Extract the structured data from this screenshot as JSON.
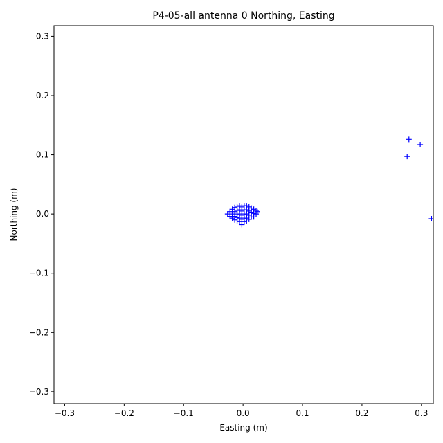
{
  "chart_data": {
    "type": "scatter",
    "title": "P4-05-all antenna 0 Northing, Easting",
    "x_label": "Easting (m)",
    "y_label": "Northing (m)",
    "color": "#0000ff",
    "marker": "+",
    "xlim": [
      -0.318,
      0.32
    ],
    "ylim": [
      -0.32,
      0.318
    ],
    "xticks": [
      {
        "value": -0.3,
        "label": "−0.3"
      },
      {
        "value": -0.2,
        "label": "−0.2"
      },
      {
        "value": -0.1,
        "label": "−0.1"
      },
      {
        "value": 0,
        "label": "0.0"
      },
      0.1,
      0.2,
      0.3
    ],
    "yticks": [
      {
        "value": -0.3,
        "label": "−0.3"
      },
      {
        "value": -0.2,
        "label": "−0.2"
      },
      {
        "value": -0.1,
        "label": "−0.1"
      },
      {
        "value": 0,
        "label": "0.0"
      },
      0.1,
      0.2,
      0.3
    ],
    "x": [
      -0.026,
      -0.022,
      -0.022,
      -0.018,
      -0.018,
      -0.018,
      -0.014,
      -0.014,
      -0.014,
      -0.014,
      -0.01,
      -0.01,
      -0.01,
      -0.01,
      -0.01,
      -0.006,
      -0.006,
      -0.006,
      -0.006,
      -0.006,
      -0.002,
      -0.002,
      -0.002,
      -0.002,
      -0.002,
      0.002,
      0.002,
      0.002,
      0.002,
      0.002,
      0.006,
      0.006,
      0.006,
      0.006,
      0.006,
      0.01,
      0.01,
      0.01,
      0.01,
      0.014,
      0.014,
      0.014,
      0.018,
      0.018,
      0.018,
      0.022,
      0.022,
      0.024,
      0.279,
      0.298,
      0.276,
      0.317
    ],
    "values": [
      0.0,
      0.004,
      -0.004,
      0.008,
      0.0,
      -0.007,
      0.011,
      0.004,
      -0.004,
      -0.01,
      0.013,
      0.006,
      0.0,
      -0.006,
      -0.012,
      0.014,
      0.007,
      0.0,
      -0.007,
      -0.013,
      0.012,
      0.005,
      -0.002,
      -0.009,
      -0.018,
      0.014,
      0.007,
      0.0,
      -0.007,
      -0.013,
      0.014,
      0.007,
      0.0,
      -0.007,
      -0.012,
      0.012,
      0.005,
      -0.002,
      -0.009,
      0.01,
      0.003,
      -0.005,
      0.008,
      0.001,
      -0.005,
      0.006,
      0.0,
      0.004,
      0.126,
      0.117,
      0.097,
      -0.008
    ]
  }
}
